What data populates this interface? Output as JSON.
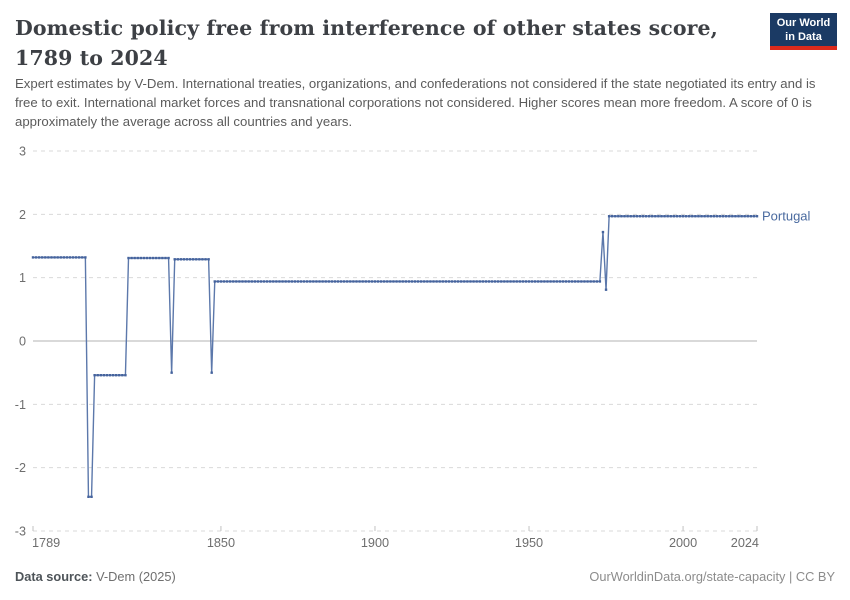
{
  "header": {
    "title": "Domestic policy free from interference of other states score, 1789 to 2024",
    "subtitle": "Expert estimates by V-Dem. International treaties, organizations, and confederations not considered if the state negotiated its entry and is free to exit. International market forces and transnational corporations not considered. Higher scores mean more freedom. A score of 0 is approximately the average across all countries and years.",
    "logo": {
      "line1": "Our World",
      "line2": "in Data",
      "bg_color": "#1b3a64",
      "accent_color": "#dc2a1c"
    }
  },
  "chart_data": {
    "type": "line",
    "title": "Domestic policy free from interference of other states score, 1789 to 2024",
    "xlabel": "",
    "ylabel": "",
    "xlim": [
      1789,
      2024
    ],
    "ylim": [
      -3,
      3
    ],
    "x_ticks": [
      1789,
      1850,
      1900,
      1950,
      2000,
      2024
    ],
    "y_ticks": [
      3,
      2,
      1,
      0,
      -1,
      -2,
      -3
    ],
    "grid": "horizontal dashed gridlines, solid line at 0",
    "legend_position": "label at end of line",
    "marker": "small square at every yearly data point",
    "series": [
      {
        "name": "Portugal",
        "color": "#4a6a9f",
        "line_color": "#5c78ab",
        "marker_color": "#45639d",
        "step_segments": [
          {
            "from": 1789,
            "to": 1806,
            "value": 1.32
          },
          {
            "from": 1807,
            "to": 1808,
            "value": -2.46
          },
          {
            "from": 1809,
            "to": 1819,
            "value": -0.54
          },
          {
            "from": 1820,
            "to": 1833,
            "value": 1.31
          },
          {
            "from": 1834,
            "to": 1834,
            "value": -0.5
          },
          {
            "from": 1835,
            "to": 1846,
            "value": 1.29
          },
          {
            "from": 1847,
            "to": 1847,
            "value": -0.5
          },
          {
            "from": 1848,
            "to": 1973,
            "value": 0.94
          },
          {
            "from": 1974,
            "to": 1974,
            "value": 1.72
          },
          {
            "from": 1975,
            "to": 1975,
            "value": 0.81
          },
          {
            "from": 1976,
            "to": 2024,
            "value": 1.97
          }
        ]
      }
    ],
    "style": {
      "gridline_color": "#d9d9d9",
      "zero_line_color": "#b3b3b3",
      "tick_color": "#c2c2c2",
      "axis_label_color": "#6e6e6e"
    }
  },
  "footer": {
    "source_label": "Data source:",
    "source_value": " V-Dem (2025)",
    "credit": "OurWorldinData.org/state-capacity | CC BY"
  }
}
